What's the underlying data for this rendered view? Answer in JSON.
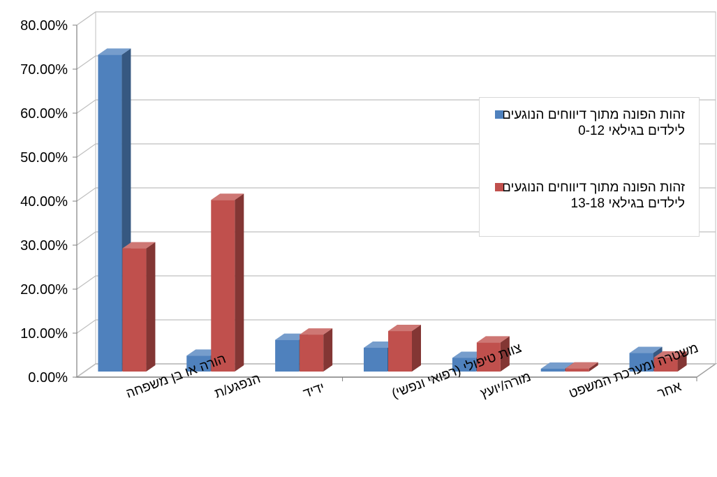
{
  "chart_data": {
    "type": "bar",
    "categories": [
      "הורה או בן משפחה",
      "הנפגע/ת",
      "ידיד",
      "צוות טיפולי (רפואי ונפשי)",
      "מורה/יועץ",
      "משטרה ומערכת המשפט",
      "אחר"
    ],
    "series": [
      {
        "name": "זהות הפונה מתוך דיווחים הנוגעים לילדים בגילאי 0-12",
        "values": [
          72.0,
          3.6,
          7.2,
          5.4,
          3.1,
          0.3,
          4.2
        ],
        "color": "#4f81bd"
      },
      {
        "name": "זהות הפונה מתוך דיווחים הנוגעים לילדים בגילאי 13-18",
        "values": [
          28.0,
          39.0,
          8.4,
          9.2,
          6.6,
          0.7,
          3.2
        ],
        "color": "#c0504d"
      }
    ],
    "yticks": [
      "0.00%",
      "10.00%",
      "20.00%",
      "30.00%",
      "40.00%",
      "50.00%",
      "60.00%",
      "70.00%",
      "80.00%"
    ],
    "ylim": [
      0,
      80
    ],
    "grid": true,
    "legend_position": "right",
    "style": "3d-clustered-column"
  }
}
